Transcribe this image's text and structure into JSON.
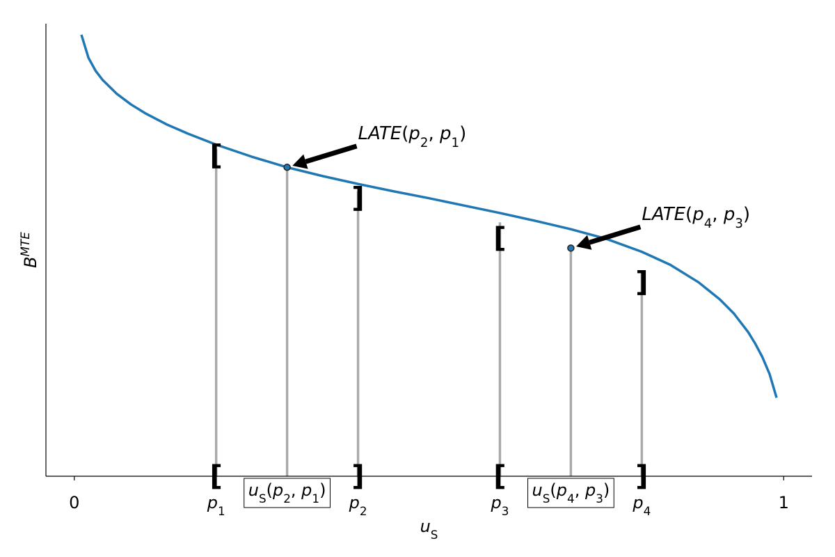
{
  "chart_data": {
    "type": "line",
    "title": "",
    "xlabel": {
      "base": "u",
      "sub": "S"
    },
    "ylabel": {
      "base": "B",
      "sup": "MTE"
    },
    "xlim": [
      -0.04,
      1.04
    ],
    "ylim": [
      0.0,
      0.98
    ],
    "grid": false,
    "x_ticks": [
      {
        "x": 0,
        "text": "0"
      },
      {
        "x": 0.2,
        "base": "p",
        "sub": "1"
      },
      {
        "x": 0.4,
        "base": "p",
        "sub": "2"
      },
      {
        "x": 0.6,
        "base": "p",
        "sub": "3"
      },
      {
        "x": 0.8,
        "base": "p",
        "sub": "4"
      },
      {
        "x": 1,
        "text": "1"
      }
    ],
    "series": [
      {
        "color": "#1f77b4",
        "x": [
          0.01,
          0.02,
          0.03,
          0.04,
          0.06,
          0.08,
          0.1,
          0.13,
          0.16,
          0.2,
          0.25,
          0.3,
          0.35,
          0.4,
          0.45,
          0.5,
          0.55,
          0.6,
          0.65,
          0.7,
          0.75,
          0.8,
          0.84,
          0.88,
          0.91,
          0.93,
          0.95,
          0.96,
          0.97,
          0.98,
          0.99
        ],
        "y": [
          0.956,
          0.906,
          0.878,
          0.858,
          0.828,
          0.805,
          0.786,
          0.762,
          0.742,
          0.718,
          0.692,
          0.669,
          0.65,
          0.633,
          0.617,
          0.602,
          0.586,
          0.57,
          0.553,
          0.535,
          0.514,
          0.486,
          0.458,
          0.42,
          0.383,
          0.352,
          0.312,
          0.287,
          0.258,
          0.222,
          0.17
        ]
      }
    ],
    "vertical_lines": [
      {
        "x": 0.2,
        "top": 0.708,
        "color": "#aaaaaa"
      },
      {
        "x": 0.3,
        "top": 0.669,
        "color": "#aaaaaa"
      },
      {
        "x": 0.4,
        "top": 0.617,
        "color": "#aaaaaa"
      },
      {
        "x": 0.6,
        "top": 0.55,
        "color": "#aaaaaa"
      },
      {
        "x": 0.7,
        "top": 0.494,
        "color": "#aaaaaa"
      },
      {
        "x": 0.8,
        "top": 0.44,
        "color": "#aaaaaa"
      }
    ],
    "points": [
      {
        "x": 0.3,
        "y": 0.669
      },
      {
        "x": 0.7,
        "y": 0.494
      }
    ],
    "brackets": [
      {
        "x": 0.2,
        "y": 0.694,
        "text": "["
      },
      {
        "x": 0.4,
        "y": 0.602,
        "text": "]"
      },
      {
        "x": 0.6,
        "y": 0.516,
        "text": "["
      },
      {
        "x": 0.8,
        "y": 0.42,
        "text": "]"
      },
      {
        "x": 0.2,
        "y": 0.0,
        "text": "["
      },
      {
        "x": 0.4,
        "y": 0.0,
        "text": "]"
      },
      {
        "x": 0.6,
        "y": 0.0,
        "text": "["
      },
      {
        "x": 0.8,
        "y": 0.0,
        "text": "]"
      }
    ],
    "annotations": [
      {
        "name": "LATE",
        "arg1": {
          "base": "p",
          "sub": "2"
        },
        "arg2": {
          "base": "p",
          "sub": "1"
        },
        "point": [
          0.3,
          0.669
        ],
        "text_pos": [
          0.4,
          0.742
        ]
      },
      {
        "name": "LATE",
        "arg1": {
          "base": "p",
          "sub": "4"
        },
        "arg2": {
          "base": "p",
          "sub": "3"
        },
        "point": [
          0.7,
          0.494
        ],
        "text_pos": [
          0.8,
          0.567
        ]
      }
    ],
    "boxed_labels": [
      {
        "x": 0.3,
        "y": 0.0,
        "base": "u",
        "sub": "S",
        "arg1": {
          "base": "p",
          "sub": "2"
        },
        "arg2": {
          "base": "p",
          "sub": "1"
        }
      },
      {
        "x": 0.7,
        "y": 0.0,
        "base": "u",
        "sub": "S",
        "arg1": {
          "base": "p",
          "sub": "4"
        },
        "arg2": {
          "base": "p",
          "sub": "3"
        }
      }
    ]
  }
}
